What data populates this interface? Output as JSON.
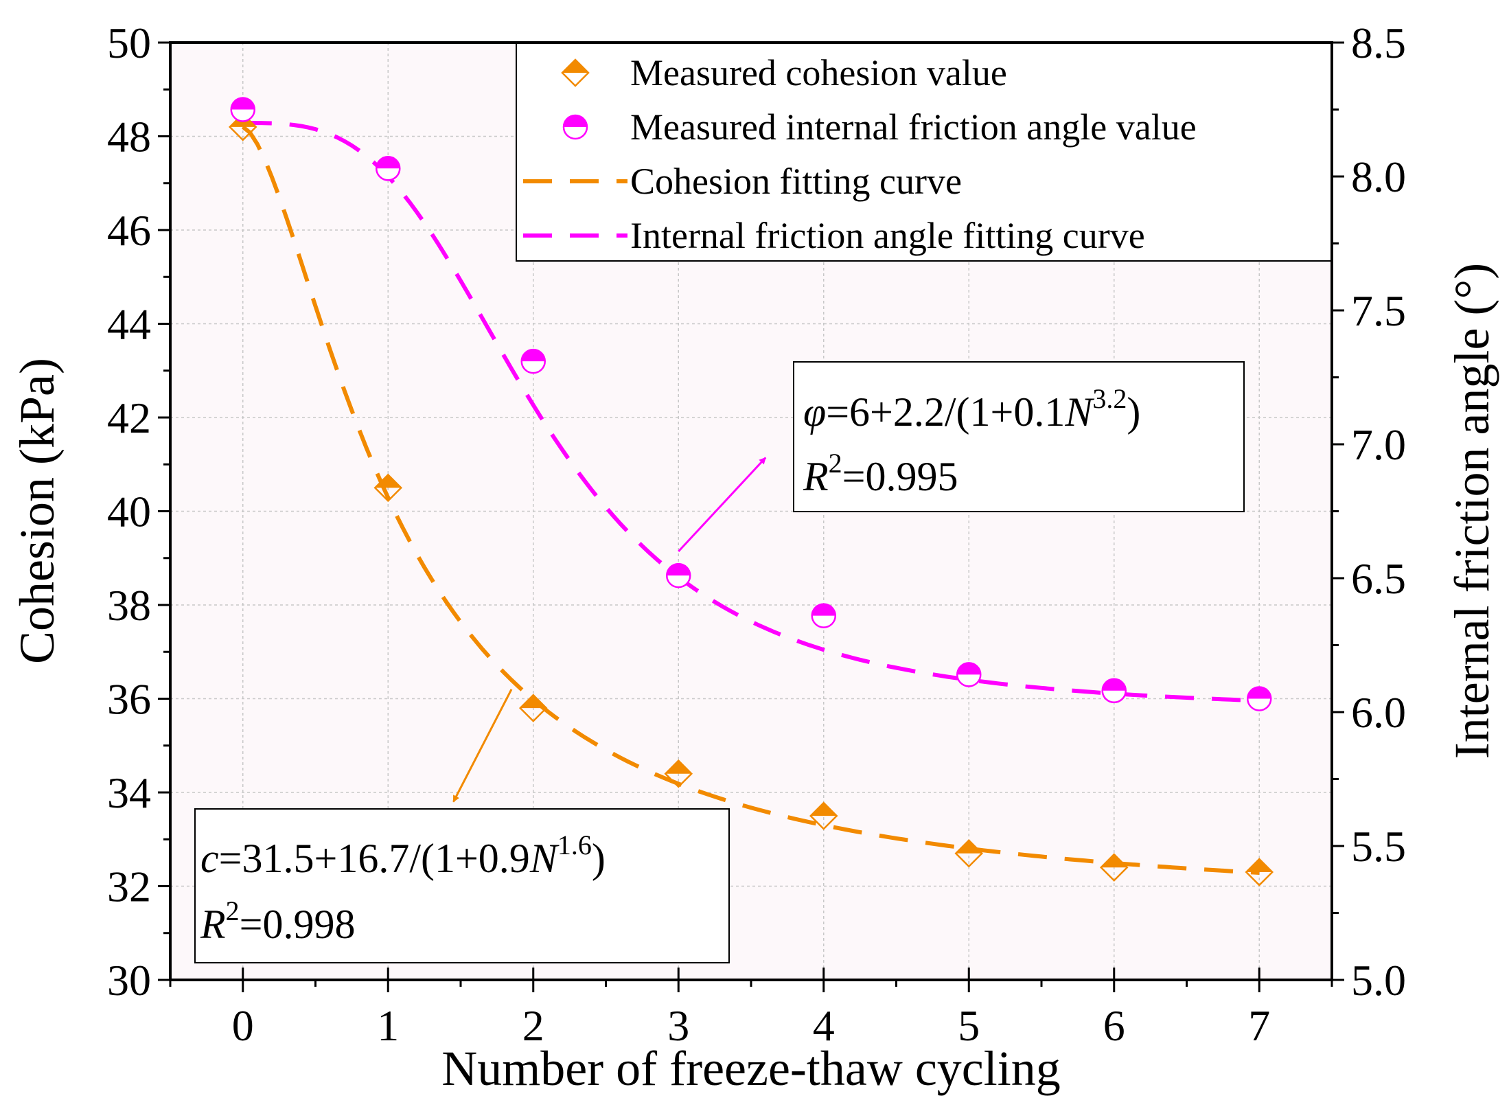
{
  "chart_data": {
    "type": "line",
    "xlabel": "Number of freeze-thaw cycling",
    "ylabel": "Cohesion (kPa)",
    "y2label": "Internal friction angle (°)",
    "xlim": [
      -0.5,
      7.5
    ],
    "ylim": [
      30,
      50
    ],
    "y2lim": [
      5.0,
      8.5
    ],
    "x_ticks": [
      0,
      1,
      2,
      3,
      4,
      5,
      6,
      7
    ],
    "y_ticks": [
      30,
      32,
      34,
      36,
      38,
      40,
      42,
      44,
      46,
      48,
      50
    ],
    "y2_ticks": [
      "5.0",
      "5.5",
      "6.0",
      "6.5",
      "7.0",
      "7.5",
      "8.0",
      "8.5"
    ],
    "grid": true,
    "legend_position": "top-right",
    "x": [
      0,
      1,
      2,
      3,
      4,
      5,
      6,
      7
    ],
    "series": [
      {
        "name": "Measured cohesion value",
        "axis": "left",
        "kind": "scatter",
        "marker": "half-filled-diamond",
        "color": "#F28A00",
        "values": [
          48.2,
          40.5,
          35.8,
          34.4,
          33.5,
          32.7,
          32.4,
          32.3
        ]
      },
      {
        "name": "Measured internal friction angle value",
        "axis": "right",
        "kind": "scatter",
        "marker": "half-filled-circle",
        "color": "#FF00FF",
        "values": [
          8.25,
          8.03,
          7.31,
          6.51,
          6.36,
          6.14,
          6.08,
          6.05
        ]
      },
      {
        "name": "Cohesion fitting curve",
        "axis": "left",
        "kind": "dashed-line",
        "color": "#F28A00",
        "model": {
          "a": 31.5,
          "b": 16.7,
          "k": 0.9,
          "p": 1.6
        }
      },
      {
        "name": "Internal friction angle fitting curve",
        "axis": "right",
        "kind": "dashed-line",
        "color": "#FF00FF",
        "model": {
          "a": 6,
          "b": 2.2,
          "k": 0.1,
          "p": 3.2
        }
      }
    ],
    "annotations": {
      "friction_equation": {
        "var": "φ",
        "mid": "=6+2.2/(1+0.1",
        "n": "N",
        "exp": "3.2",
        "end": ")",
        "r": "R",
        "r_exp": "2",
        "r_val": "=0.995",
        "arrow_from_x": 3.0,
        "arrow_from_y2": 6.6,
        "arrow_to_x": 3.6,
        "arrow_to_y2": 6.95,
        "color": "#FF00FF"
      },
      "cohesion_equation": {
        "var": "c",
        "mid": "=31.5+16.7/(1+0.9",
        "n": "N",
        "exp": "1.6",
        "end": ")",
        "r": "R",
        "r_exp": "2",
        "r_val": "=0.998",
        "arrow_from_x": 1.85,
        "arrow_from_y": 36.2,
        "arrow_to_x": 1.45,
        "arrow_to_y": 33.8,
        "color": "#F28A00"
      }
    }
  }
}
